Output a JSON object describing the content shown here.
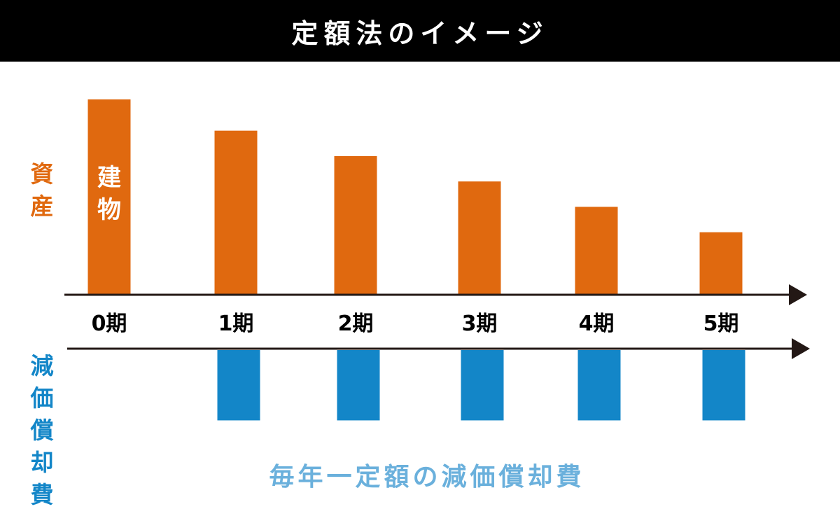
{
  "title": "定額法のイメージ",
  "colors": {
    "asset": "#E0690F",
    "depreciation": "#1386C8",
    "caption": "#6AB0DC",
    "axis": "#231815",
    "title_bg": "#000000"
  },
  "chart_data": {
    "type": "bar",
    "title": "定額法のイメージ",
    "categories": [
      "0期",
      "1期",
      "2期",
      "3期",
      "4期",
      "5期"
    ],
    "series": [
      {
        "name": "資産",
        "values": [
          100,
          84,
          71,
          58,
          45,
          32
        ]
      },
      {
        "name": "減価償却費",
        "values": [
          0,
          36,
          36,
          36,
          36,
          36
        ]
      }
    ],
    "bar_label": "建物",
    "annotation": "毎年一定額の減価償却費",
    "ylabel_top": "資産",
    "ylabel_bottom": "減価償却費",
    "grid": false
  }
}
